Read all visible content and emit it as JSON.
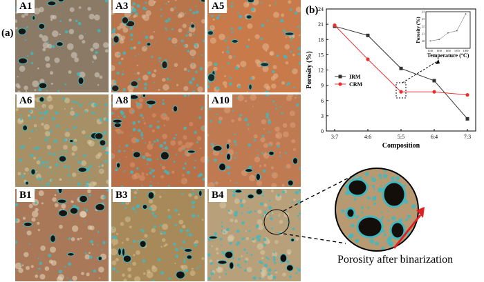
{
  "panels": {
    "a": "(a)",
    "b": "(b)"
  },
  "tiles": [
    {
      "id": "A1",
      "label": "A1",
      "base": "#8a7a66",
      "accent": "#d8d0c4",
      "pore": "#1a1410",
      "cyan": 0.15
    },
    {
      "id": "A3",
      "label": "A3",
      "base": "#b8744a",
      "accent": "#e0c0a0",
      "pore": "#2a1a12",
      "cyan": 0.55
    },
    {
      "id": "A5",
      "label": "A5",
      "base": "#c87a4a",
      "accent": "#e8b890",
      "pore": "#1a2a2a",
      "cyan": 0.45
    },
    {
      "id": "A6",
      "label": "A6",
      "base": "#a89066",
      "accent": "#d8c8a0",
      "pore": "#1a1812",
      "cyan": 0.7
    },
    {
      "id": "A8",
      "label": "A8",
      "base": "#b87048",
      "accent": "#d89870",
      "pore": "#1a1410",
      "cyan": 0.6
    },
    {
      "id": "A10",
      "label": "A10",
      "base": "#c07a52",
      "accent": "#dca078",
      "pore": "#141010",
      "cyan": 0.35
    },
    {
      "id": "B1",
      "label": "B1",
      "base": "#a87858",
      "accent": "#e8d8c0",
      "pore": "#1a1410",
      "cyan": 0.25
    },
    {
      "id": "B3",
      "label": "B3",
      "base": "#a88a5a",
      "accent": "#d8c090",
      "pore": "#141210",
      "cyan": 0.45
    },
    {
      "id": "B4",
      "label": "B4",
      "base": "#b8a07a",
      "accent": "#d8c8a8",
      "pore": "#100c0a",
      "cyan": 0.75
    }
  ],
  "chart_data": [
    {
      "type": "line",
      "xlabel": "Composition",
      "ylabel": "Porosity (%)",
      "categories": [
        "3:7",
        "4:6",
        "5:5",
        "6:4",
        "7:3"
      ],
      "yticks": [
        0,
        3,
        6,
        9,
        12,
        15,
        18,
        21,
        24
      ],
      "ylim": [
        0,
        24
      ],
      "legend_position": "middle-left",
      "series": [
        {
          "name": "IRM",
          "color": "#333333",
          "marker": "square",
          "values": [
            20.6,
            18.8,
            12.3,
            9.9,
            2.4
          ]
        },
        {
          "name": "CRM",
          "color": "#e83030",
          "marker": "circle",
          "values": [
            20.8,
            14.1,
            7.7,
            7.7,
            7.1
          ]
        }
      ]
    },
    {
      "type": "line",
      "xlabel": "Temperature (°C)",
      "ylabel": "Porosity (%)",
      "x": [
        1010,
        1030,
        1050,
        1070,
        1090
      ],
      "xticks": [
        "1010",
        "1030",
        "1050",
        "1070",
        "1090"
      ],
      "yticks": [
        "20",
        "21",
        "22",
        "23",
        "24"
      ],
      "xlim": [
        1000,
        1100
      ],
      "ylim": [
        19,
        24
      ],
      "series": [
        {
          "color": "#555555",
          "values": [
            20.0,
            20.2,
            21.1,
            21.4,
            23.7
          ]
        }
      ]
    }
  ],
  "caption": "Porosity after binarization"
}
